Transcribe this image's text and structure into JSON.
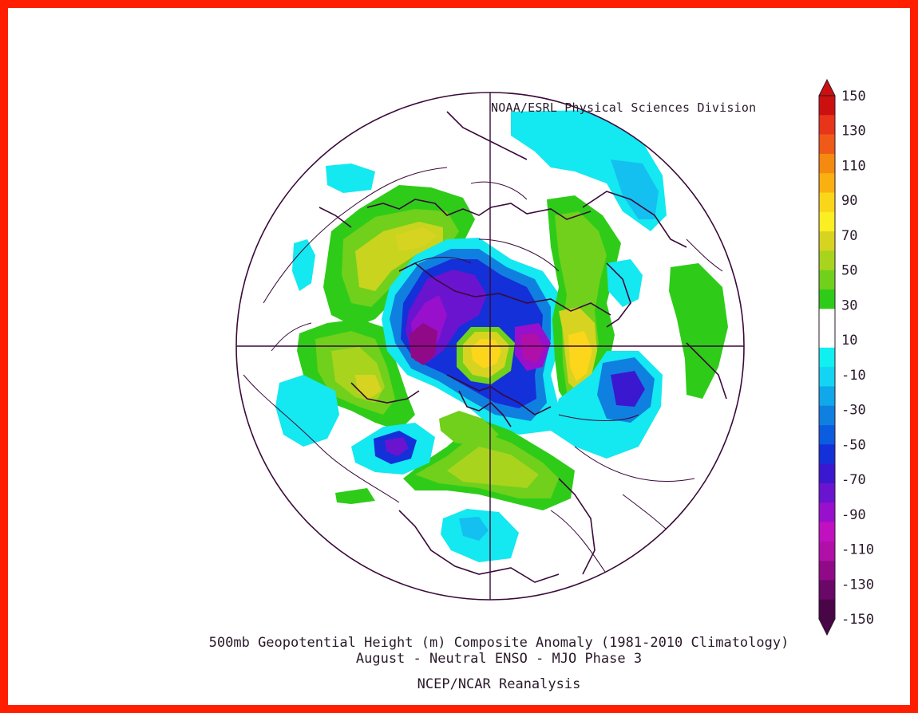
{
  "credit": "NOAA/ESRL Physical Sciences Division",
  "title_line1": "500mb Geopotential Height (m) Composite Anomaly (1981-2010 Climatology)",
  "title_line2": "August - Neutral ENSO - MJO Phase 3",
  "title_line3": "NCEP/NCAR Reanalysis",
  "colors": {
    "frame": "#ff1e00",
    "contour_line": "#3a0a3a"
  },
  "colorbar": {
    "labels": [
      "150",
      "130",
      "110",
      "90",
      "70",
      "50",
      "30",
      "10",
      "-10",
      "-30",
      "-50",
      "-70",
      "-90",
      "-110",
      "-130",
      "-150"
    ],
    "colors": [
      "#cc1010",
      "#e83418",
      "#f05a18",
      "#f58a10",
      "#f9b010",
      "#fad61a",
      "#fbee22",
      "#d6d420",
      "#a8d41e",
      "#70d01c",
      "#2ecc18",
      "#ffffff",
      "#ffffff",
      "#10f0f0",
      "#14d4f4",
      "#10a8e8",
      "#1080e0",
      "#0c5ce0",
      "#1430d8",
      "#3a18d0",
      "#6a14d0",
      "#9810cc",
      "#c010c0",
      "#b010a8",
      "#900a88",
      "#6a0868",
      "#4a0448"
    ]
  },
  "map_projection": "polar stereographic, North Pole"
}
